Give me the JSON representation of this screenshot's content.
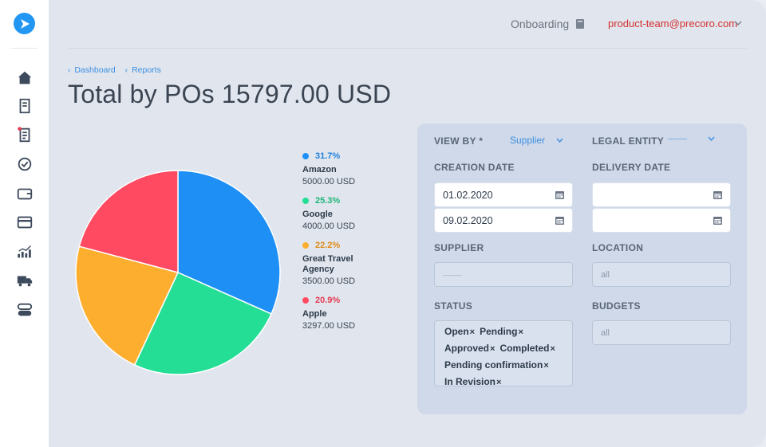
{
  "colors": {
    "accent": "#2196f3",
    "link": "#3c8ee0",
    "user": "#d32f2f",
    "amazon": "#1e90f5",
    "google": "#24de96",
    "travel": "#fdae2f",
    "apple": "#ff4a62"
  },
  "sidebar": {
    "icons": [
      "logo-icon",
      "home-icon",
      "document-icon",
      "requisition-icon",
      "approval-check-icon",
      "wallet-icon",
      "invoice-card-icon",
      "analytics-icon",
      "delivery-truck-icon",
      "toggle-settings-icon"
    ]
  },
  "header": {
    "onboarding": "Onboarding",
    "user_email": "product-team@precoro.com"
  },
  "breadcrumb": [
    "Dashboard",
    "Reports"
  ],
  "page_title": "Total by POs 15797.00 USD",
  "chart_data": {
    "type": "pie",
    "total": 15797.0,
    "currency": "USD",
    "slices": [
      {
        "name": "Amazon",
        "value": 5000.0,
        "percent": 31.7,
        "amount_label": "5000.00 USD",
        "pct_label": "31.7%",
        "color": "#1e90f5"
      },
      {
        "name": "Google",
        "value": 4000.0,
        "percent": 25.3,
        "amount_label": "4000.00 USD",
        "pct_label": "25.3%",
        "color": "#24de96"
      },
      {
        "name": "Great Travel Agency",
        "value": 3500.0,
        "percent": 22.2,
        "amount_label": "3500.00 USD",
        "pct_label": "22.2%",
        "color": "#fdae2f"
      },
      {
        "name": "Apple",
        "value": 3297.0,
        "percent": 20.9,
        "amount_label": "3297.00 USD",
        "pct_label": "20.9%",
        "color": "#ff4a62"
      }
    ]
  },
  "filters": {
    "view_by_label": "VIEW BY *",
    "view_by_value": "Supplier",
    "legal_entity_label": "LEGAL ENTITY",
    "legal_entity_value": "--------",
    "creation_date_label": "CREATION DATE",
    "creation_from": "01.02.2020",
    "creation_to": "09.02.2020",
    "delivery_date_label": "DELIVERY DATE",
    "delivery_from": "",
    "delivery_to": "",
    "supplier_label": "SUPPLIER",
    "supplier_placeholder": "---------",
    "location_label": "LOCATION",
    "location_placeholder": "all",
    "status_label": "STATUS",
    "statuses": [
      "Open",
      "Pending",
      "Approved",
      "Completed",
      "Pending confirmation",
      "In Revision"
    ],
    "budgets_label": "BUDGETS",
    "budgets_placeholder": "all"
  }
}
